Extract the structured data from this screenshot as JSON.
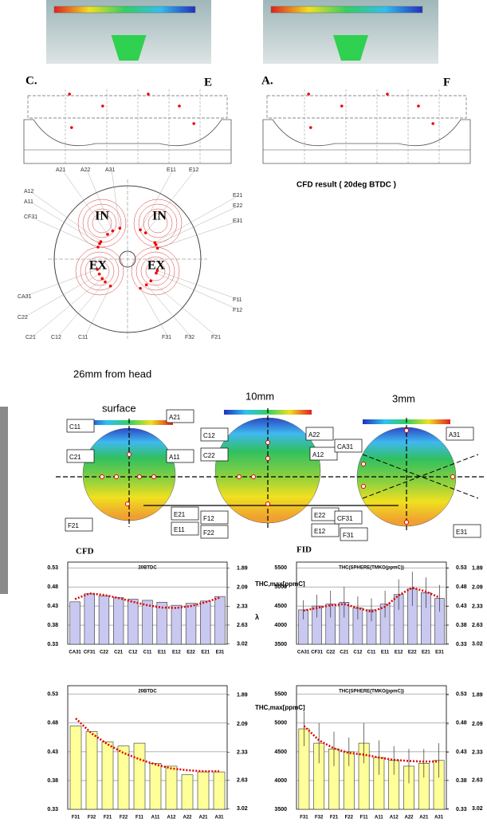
{
  "section_labels": [
    "C.",
    "E",
    "A.",
    "F"
  ],
  "head_ports": [
    "IN",
    "IN",
    "EX",
    "EX"
  ],
  "head_points": [
    "A21",
    "A22",
    "A31",
    "E11",
    "E12",
    "A12",
    "A11",
    "CF31",
    "E21",
    "E22",
    "E31",
    "CA31",
    "C22",
    "F11",
    "F12",
    "C21",
    "C12",
    "C11",
    "F31",
    "F32",
    "F21"
  ],
  "cfd_caption": "CFD result ( 20deg BTDC )",
  "planes": [
    "26mm from head",
    "surface",
    "10mm",
    "3mm"
  ],
  "contour_points": [
    "C11",
    "C21",
    "A21",
    "A11",
    "F21",
    "E21",
    "E11",
    "C12",
    "C22",
    "A22",
    "A12",
    "F12",
    "F22",
    "E22",
    "E12",
    "CA31",
    "A31",
    "CF31",
    "F31",
    "E31"
  ],
  "chart_data": [
    {
      "type": "bar",
      "heading": "CFD",
      "title": "20BTDC",
      "categories": [
        "CA31",
        "CF31",
        "C22",
        "C21",
        "C12",
        "C11",
        "E11",
        "E12",
        "E22",
        "E21",
        "E31"
      ],
      "series": [
        {
          "type": "bar",
          "color": "#c8c8f0",
          "values": [
            0.441,
            0.462,
            0.456,
            0.452,
            0.448,
            0.445,
            0.44,
            0.432,
            0.437,
            0.443,
            0.455
          ]
        },
        {
          "type": "line",
          "color": "#e00000",
          "values": [
            0.448,
            0.463,
            0.459,
            0.451,
            0.441,
            0.432,
            0.426,
            0.425,
            0.43,
            0.44,
            0.452
          ]
        }
      ],
      "ylim": [
        0.33,
        0.545
      ],
      "yticks": [
        0.33,
        0.38,
        0.43,
        0.48,
        0.53
      ],
      "grid": true,
      "y2label": "λ",
      "y2scale": "reciprocal",
      "y2lim": [
        3.03,
        1.835
      ],
      "y2ticks": [
        1.89,
        2.09,
        2.33,
        2.63,
        3.02
      ]
    },
    {
      "type": "bar",
      "heading": "FID",
      "title": "THC(SPHERE(TMKO(ppmC))",
      "ylabel": "THC,max[ppmC]",
      "categories": [
        "CA31",
        "CF31",
        "C22",
        "C21",
        "C12",
        "C11",
        "E11",
        "E12",
        "E22",
        "E21",
        "E31"
      ],
      "series": [
        {
          "type": "bar",
          "color": "#c8c8f0",
          "values": [
            4400,
            4500,
            4550,
            4600,
            4450,
            4400,
            4550,
            4800,
            4950,
            4850,
            4700
          ],
          "errors": [
            250,
            300,
            350,
            400,
            300,
            300,
            350,
            400,
            450,
            400,
            350
          ]
        },
        {
          "type": "line",
          "color": "#e00000",
          "values": [
            4380,
            4450,
            4520,
            4550,
            4450,
            4350,
            4480,
            4780,
            4980,
            4880,
            4720
          ]
        }
      ],
      "ylim": [
        3500,
        5650
      ],
      "yticks": [
        3500,
        4000,
        4500,
        5000,
        5500
      ],
      "grid": true,
      "y2lim": [
        0.33,
        0.545
      ],
      "y2ticks": [
        0.33,
        0.38,
        0.43,
        0.48,
        0.53
      ],
      "y3scale": "reciprocal",
      "y3lim": [
        3.03,
        1.835
      ],
      "y3ticks": [
        1.89,
        2.09,
        2.33,
        2.63,
        3.02
      ]
    },
    {
      "type": "bar",
      "title": "20BTDC",
      "categories": [
        "F31",
        "F32",
        "F21",
        "F22",
        "F11",
        "A11",
        "A12",
        "A22",
        "A21",
        "A31"
      ],
      "series": [
        {
          "type": "bar",
          "color": "#ffff99",
          "values": [
            0.475,
            0.465,
            0.447,
            0.44,
            0.445,
            0.41,
            0.405,
            0.39,
            0.395,
            0.395
          ]
        },
        {
          "type": "line",
          "color": "#e00000",
          "values": [
            0.488,
            0.462,
            0.443,
            0.428,
            0.417,
            0.408,
            0.401,
            0.398,
            0.396,
            0.396
          ]
        }
      ],
      "ylim": [
        0.33,
        0.545
      ],
      "yticks": [
        0.33,
        0.38,
        0.43,
        0.48,
        0.53
      ],
      "grid": true,
      "y2scale": "reciprocal",
      "y2lim": [
        3.03,
        1.835
      ],
      "y2ticks": [
        1.89,
        2.09,
        2.33,
        2.63,
        3.02
      ]
    },
    {
      "type": "bar",
      "title": "THC(SPHERE(TMKO(ppmC))",
      "ylabel": "THC,max[ppmC]",
      "categories": [
        "F31",
        "F32",
        "F21",
        "F22",
        "F11",
        "A11",
        "A12",
        "A22",
        "A21",
        "A31"
      ],
      "series": [
        {
          "type": "bar",
          "color": "#ffff99",
          "values": [
            4900,
            4650,
            4550,
            4500,
            4650,
            4400,
            4350,
            4250,
            4300,
            4350
          ],
          "errors": [
            300,
            350,
            300,
            250,
            350,
            300,
            250,
            300,
            250,
            300
          ]
        },
        {
          "type": "line",
          "color": "#e00000",
          "values": [
            4950,
            4700,
            4560,
            4480,
            4450,
            4400,
            4360,
            4340,
            4330,
            4330
          ]
        }
      ],
      "ylim": [
        3500,
        5650
      ],
      "yticks": [
        3500,
        4000,
        4500,
        5000,
        5500
      ],
      "grid": true,
      "y2lim": [
        0.33,
        0.545
      ],
      "y2ticks": [
        0.33,
        0.38,
        0.43,
        0.48,
        0.53
      ],
      "y3scale": "reciprocal",
      "y3lim": [
        3.03,
        1.835
      ],
      "y3ticks": [
        1.89,
        2.09,
        2.33,
        2.63,
        3.02
      ]
    }
  ]
}
